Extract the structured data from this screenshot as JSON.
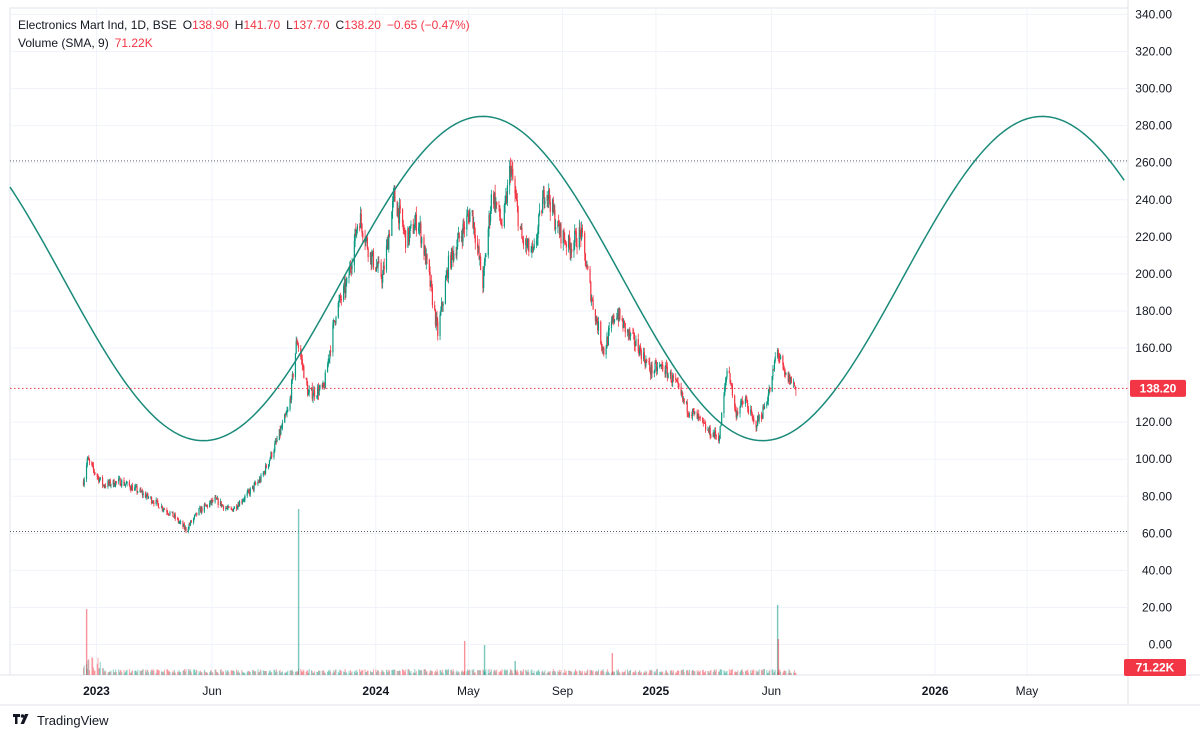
{
  "header": {
    "symbol": "Electronics Mart Ind, 1D, BSE",
    "open_label": "O",
    "open": "138.90",
    "high_label": "H",
    "high": "141.70",
    "low_label": "L",
    "low": "137.70",
    "close_label": "C",
    "close": "138.20",
    "change": "−0.65 (−0.47%)",
    "volume_label": "Volume (SMA, 9)",
    "volume_value": "71.22K"
  },
  "brand": {
    "name": "TradingView",
    "icon": "tradingview-logo-icon"
  },
  "colors": {
    "up": "#089981",
    "down": "#f23645",
    "sine": "#1a8a7a",
    "price_line": "#f23645",
    "grid": "#f0f3fa",
    "badge": "#f23645"
  },
  "chart_data": {
    "type": "candlestick",
    "price_axis": {
      "ticks": [
        "340.00",
        "320.00",
        "300.00",
        "280.00",
        "260.00",
        "240.00",
        "220.00",
        "200.00",
        "180.00",
        "160.00",
        "140.00",
        "120.00",
        "100.00",
        "80.00",
        "60.00",
        "40.00",
        "20.00",
        "0.00"
      ],
      "range": [
        0,
        340
      ]
    },
    "time_axis": {
      "ticks": [
        {
          "label": "2023",
          "date": "2023-01-01",
          "major": true
        },
        {
          "label": "Jun",
          "date": "2023-06-01",
          "major": false
        },
        {
          "label": "2024",
          "date": "2024-01-01",
          "major": true
        },
        {
          "label": "May",
          "date": "2024-05-01",
          "major": false
        },
        {
          "label": "Sep",
          "date": "2024-09-01",
          "major": false
        },
        {
          "label": "2025",
          "date": "2025-01-01",
          "major": true
        },
        {
          "label": "Jun",
          "date": "2025-06-01",
          "major": false
        },
        {
          "label": "2026",
          "date": "2026-01-01",
          "major": true
        },
        {
          "label": "May",
          "date": "2026-05-01",
          "major": false
        }
      ],
      "range": [
        "2022-09-10",
        "2026-09-10"
      ]
    },
    "last_price": 138.2,
    "last_price_label": "138.20",
    "last_volume_label": "71.22K",
    "horizontal_lines": [
      261,
      61
    ],
    "sine_wave": {
      "center": 197.5,
      "amplitude": 87.5,
      "peak_date": "2024-05-20",
      "period_days": 731,
      "start": "2022-09-10",
      "end": "2026-09-05"
    },
    "price_path": [
      [
        "2022-12-15",
        88
      ],
      [
        "2022-12-20",
        100
      ],
      [
        "2022-12-28",
        94
      ],
      [
        "2023-01-10",
        86
      ],
      [
        "2023-02-01",
        88
      ],
      [
        "2023-02-20",
        84
      ],
      [
        "2023-03-15",
        78
      ],
      [
        "2023-04-10",
        70
      ],
      [
        "2023-04-28",
        62
      ],
      [
        "2023-05-15",
        72
      ],
      [
        "2023-06-05",
        78
      ],
      [
        "2023-06-25",
        72
      ],
      [
        "2023-07-15",
        80
      ],
      [
        "2023-08-05",
        90
      ],
      [
        "2023-08-25",
        110
      ],
      [
        "2023-09-10",
        128
      ],
      [
        "2023-09-20",
        165
      ],
      [
        "2023-10-05",
        135
      ],
      [
        "2023-10-25",
        138
      ],
      [
        "2023-11-10",
        180
      ],
      [
        "2023-11-25",
        195
      ],
      [
        "2023-12-10",
        232
      ],
      [
        "2023-12-25",
        210
      ],
      [
        "2024-01-10",
        198
      ],
      [
        "2024-01-25",
        242
      ],
      [
        "2024-02-10",
        218
      ],
      [
        "2024-02-25",
        230
      ],
      [
        "2024-03-10",
        200
      ],
      [
        "2024-03-22",
        168
      ],
      [
        "2024-04-05",
        205
      ],
      [
        "2024-04-20",
        220
      ],
      [
        "2024-05-05",
        235
      ],
      [
        "2024-05-20",
        195
      ],
      [
        "2024-06-01",
        245
      ],
      [
        "2024-06-15",
        225
      ],
      [
        "2024-06-25",
        258
      ],
      [
        "2024-07-10",
        218
      ],
      [
        "2024-07-25",
        210
      ],
      [
        "2024-08-10",
        248
      ],
      [
        "2024-08-25",
        225
      ],
      [
        "2024-09-10",
        215
      ],
      [
        "2024-09-25",
        222
      ],
      [
        "2024-10-10",
        185
      ],
      [
        "2024-10-25",
        158
      ],
      [
        "2024-11-10",
        180
      ],
      [
        "2024-11-25",
        168
      ],
      [
        "2024-12-10",
        160
      ],
      [
        "2024-12-25",
        148
      ],
      [
        "2025-01-10",
        150
      ],
      [
        "2025-01-25",
        142
      ],
      [
        "2025-02-10",
        128
      ],
      [
        "2025-02-25",
        122
      ],
      [
        "2025-03-10",
        115
      ],
      [
        "2025-03-25",
        112
      ],
      [
        "2025-04-05",
        152
      ],
      [
        "2025-04-15",
        125
      ],
      [
        "2025-04-28",
        132
      ],
      [
        "2025-05-10",
        118
      ],
      [
        "2025-05-20",
        125
      ],
      [
        "2025-06-01",
        140
      ],
      [
        "2025-06-08",
        160
      ],
      [
        "2025-06-18",
        145
      ],
      [
        "2025-06-28",
        142
      ],
      [
        "2025-07-03",
        138.2
      ]
    ]
  }
}
